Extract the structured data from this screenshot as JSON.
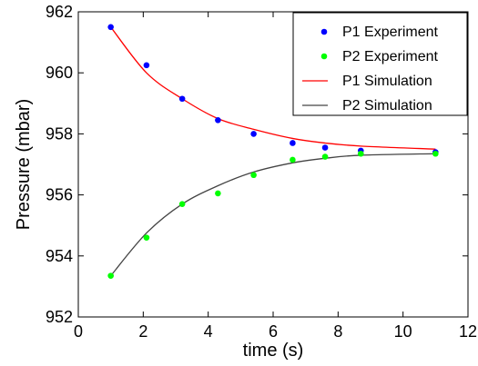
{
  "chart_data": {
    "type": "line",
    "xlabel": "time (s)",
    "ylabel": "Pressure (mbar)",
    "xlim": [
      0,
      12
    ],
    "ylim": [
      952,
      962
    ],
    "x_ticks": [
      0,
      2,
      4,
      6,
      8,
      10,
      12
    ],
    "y_ticks": [
      952,
      954,
      956,
      958,
      960,
      962
    ],
    "grid": false,
    "legend_position": "top-right",
    "series": [
      {
        "name": "P1 Experiment",
        "kind": "scatter",
        "color": "#0000ff",
        "x": [
          1.0,
          2.1,
          3.2,
          4.3,
          5.4,
          6.6,
          7.6,
          8.7,
          11.0
        ],
        "y": [
          961.5,
          960.25,
          959.15,
          958.45,
          958.0,
          957.7,
          957.55,
          957.45,
          957.4
        ]
      },
      {
        "name": "P2 Experiment",
        "kind": "scatter",
        "color": "#00ff00",
        "x": [
          1.0,
          2.1,
          3.2,
          4.3,
          5.4,
          6.6,
          7.6,
          8.7,
          11.0
        ],
        "y": [
          953.35,
          954.6,
          955.7,
          956.05,
          956.65,
          957.15,
          957.25,
          957.35,
          957.35
        ]
      },
      {
        "name": "P1 Simulation",
        "kind": "line",
        "color": "#ff0000",
        "x": [
          1.0,
          2.1,
          3.2,
          4.3,
          5.4,
          6.6,
          7.6,
          8.7,
          11.0
        ],
        "y": [
          961.5,
          960.0,
          959.15,
          958.5,
          958.15,
          957.85,
          957.7,
          957.6,
          957.5
        ]
      },
      {
        "name": "P2 Simulation",
        "kind": "line",
        "color": "#444444",
        "x": [
          1.0,
          2.1,
          3.2,
          4.3,
          5.4,
          6.6,
          7.6,
          8.7,
          11.0
        ],
        "y": [
          953.35,
          954.75,
          955.7,
          956.3,
          956.75,
          957.05,
          957.2,
          957.3,
          957.35
        ]
      }
    ]
  }
}
